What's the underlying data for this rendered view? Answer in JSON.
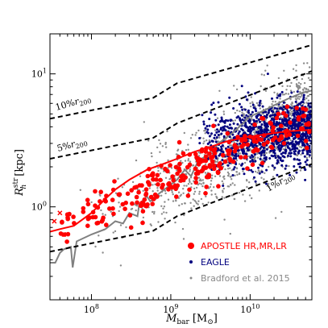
{
  "chart_data": {
    "type": "scatter",
    "xscale": "log",
    "yscale": "log",
    "xlim": [
      30000000,
      60000000000
    ],
    "ylim": [
      0.2,
      20
    ],
    "grid": false,
    "legend_position": "lower-right",
    "xlabel": {
      "main": "M",
      "sub": "bar",
      "unit_open": "[M",
      "unit_sub": "⊙",
      "unit_close": "]"
    },
    "ylabel": {
      "main": "R",
      "sup": "str",
      "sub": "h",
      "unit": "[kpc]"
    },
    "x_ticks": [
      {
        "value": 100000000,
        "base": "10",
        "exp": "8"
      },
      {
        "value": 1000000000,
        "base": "10",
        "exp": "9"
      },
      {
        "value": 10000000000,
        "base": "10",
        "exp": "10"
      }
    ],
    "y_ticks": [
      {
        "value": 1,
        "base": "10",
        "exp": "0"
      },
      {
        "value": 10,
        "base": "10",
        "exp": "1"
      }
    ],
    "reference_lines": [
      {
        "pct": "10%",
        "sym": "r",
        "sub": "200",
        "points": [
          [
            30000000,
            4.6
          ],
          [
            600000000,
            6.6
          ],
          [
            1200000000,
            8.5
          ],
          [
            60000000000,
            16.5
          ]
        ]
      },
      {
        "pct": "5%",
        "sym": "r",
        "sub": "200",
        "points": [
          [
            30000000,
            2.3
          ],
          [
            600000000,
            3.3
          ],
          [
            1200000000,
            4.25
          ],
          [
            60000000000,
            10.5
          ]
        ]
      },
      {
        "pct": "1%",
        "sym": "r",
        "sub": "200",
        "points": [
          [
            30000000,
            0.46
          ],
          [
            600000000,
            0.66
          ],
          [
            1200000000,
            0.85
          ],
          [
            60000000000,
            2.1
          ]
        ]
      }
    ],
    "series": [
      {
        "name": "APOSTLE HR,MR,LR",
        "color": "#ff0000"
      },
      {
        "name": "EAGLE",
        "color": "#00007f"
      },
      {
        "name": "Bradford et al. 2015",
        "color": "#888888"
      }
    ],
    "apostle_median": [
      [
        30000000,
        0.65
      ],
      [
        40000000,
        0.68
      ],
      [
        60000000,
        0.72
      ],
      [
        100000000,
        0.9
      ],
      [
        150000000,
        1.15
      ],
      [
        200000000,
        1.35
      ],
      [
        300000000,
        1.6
      ],
      [
        500000000,
        1.9
      ],
      [
        800000000,
        2.1
      ],
      [
        1200000000,
        2.3
      ],
      [
        2000000000,
        2.6
      ],
      [
        3000000000,
        2.8
      ],
      [
        5000000000,
        3.1
      ],
      [
        8000000000,
        3.3
      ],
      [
        15000000000,
        3.5
      ],
      [
        30000000000,
        3.7
      ],
      [
        60000000000,
        3.8
      ]
    ],
    "bradford_median": [
      [
        30000000,
        0.38
      ],
      [
        35000000,
        0.38
      ],
      [
        40000000,
        0.45
      ],
      [
        45000000,
        0.48
      ],
      [
        55000000,
        0.5
      ],
      [
        58000000,
        0.35
      ],
      [
        65000000,
        0.55
      ],
      [
        100000000,
        0.62
      ],
      [
        150000000,
        0.68
      ],
      [
        200000000,
        0.78
      ],
      [
        250000000,
        0.75
      ],
      [
        300000000,
        0.9
      ],
      [
        380000000,
        0.85
      ],
      [
        400000000,
        1.05
      ],
      [
        500000000,
        1.2
      ],
      [
        550000000,
        1.1
      ],
      [
        700000000,
        1.25
      ],
      [
        900000000,
        1.4
      ],
      [
        1200000000,
        1.6
      ],
      [
        1500000000,
        1.9
      ],
      [
        1800000000,
        1.7
      ],
      [
        2200000000,
        2.2
      ],
      [
        3000000000,
        2.5
      ],
      [
        4000000000,
        3.0
      ],
      [
        6000000000,
        3.6
      ],
      [
        8000000000,
        4.2
      ],
      [
        10000000000,
        4.8
      ],
      [
        15000000000,
        5.3
      ],
      [
        20000000000,
        5.8
      ],
      [
        30000000000,
        6.5
      ],
      [
        45000000000,
        7.2
      ],
      [
        60000000000,
        7.5
      ]
    ],
    "apostle_crosses": [
      [
        34000000,
        0.78
      ],
      [
        40000000,
        0.9
      ],
      [
        45000000,
        0.62
      ]
    ]
  }
}
